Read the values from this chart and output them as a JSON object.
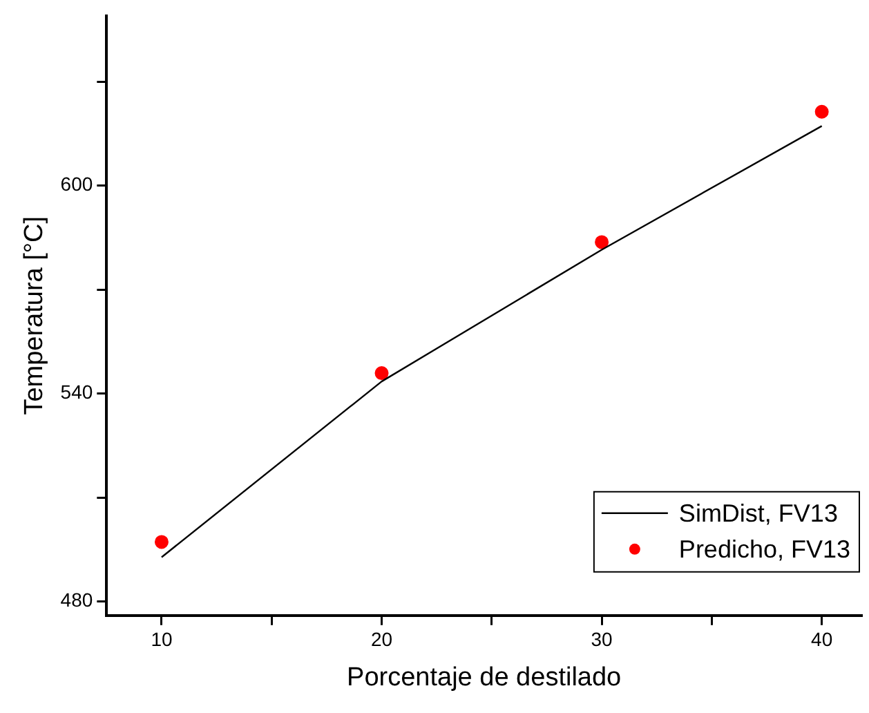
{
  "chart_data": {
    "type": "line",
    "xlabel": "Porcentaje de destilado",
    "ylabel": "Temperatura [°C]",
    "x": [
      10,
      20,
      30,
      40
    ],
    "series": [
      {
        "name": "SimDist, FV13",
        "type": "line",
        "color": "#000000",
        "marker": "none",
        "line_style": "solid",
        "values": [
          492.8,
          543.5,
          581.5,
          617.2
        ]
      },
      {
        "name": "Predicho, FV13",
        "type": "scatter",
        "color": "#ff0000",
        "marker": "circle",
        "values": [
          497.2,
          545.9,
          583.7,
          621.3
        ]
      }
    ],
    "xlim": [
      7.5,
      41.8
    ],
    "xticks": [
      10,
      {
        "value": 15,
        "label": null
      },
      20,
      {
        "value": 25,
        "label": null
      },
      30,
      {
        "value": 35,
        "label": null
      },
      40
    ],
    "ylim": [
      476,
      649
    ],
    "yticks": [
      480,
      {
        "value": 510,
        "label": null
      },
      540,
      {
        "value": 570,
        "label": null
      },
      600,
      {
        "value": 630,
        "label": null
      }
    ],
    "grid": false,
    "legend": "bottom right"
  }
}
